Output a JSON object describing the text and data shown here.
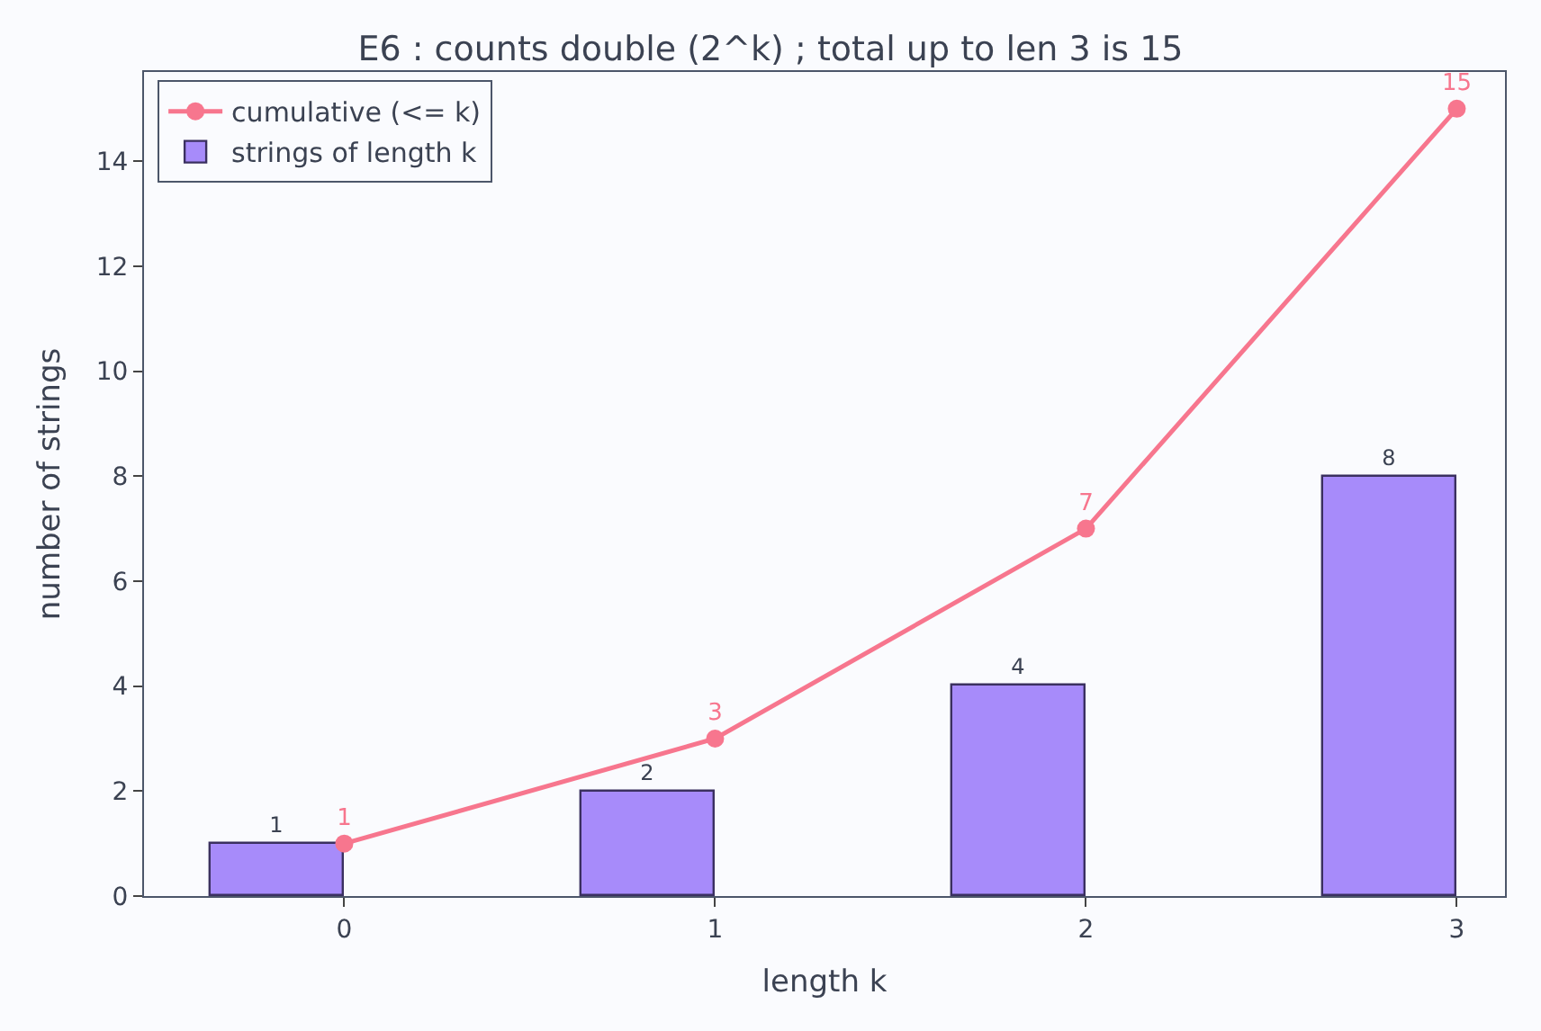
{
  "chart_data": {
    "type": "bar",
    "title": "E6 : counts double (2^k) ; total up to len 3 is 15",
    "xlabel": "length k",
    "ylabel": "number of strings",
    "x": [
      0,
      1,
      2,
      3
    ],
    "series": [
      {
        "name": "strings of length k",
        "color": "#a78bfa",
        "x": [
          -0.18,
          0.82,
          1.82,
          2.82
        ],
        "values": [
          1,
          2,
          4,
          8
        ]
      },
      {
        "name": "cumulative (<= k)",
        "type": "line",
        "color": "#f7768e",
        "values": [
          1,
          3,
          7,
          15
        ],
        "marker": "circle"
      }
    ],
    "xlim": [
      -0.54,
      3.13
    ],
    "xticks": [
      0,
      1,
      2,
      3
    ],
    "ylim": [
      0,
      15.7
    ],
    "yticks": [
      0,
      2,
      4,
      6,
      8,
      10,
      12,
      14
    ],
    "data_labels": true,
    "legend": "top left"
  }
}
